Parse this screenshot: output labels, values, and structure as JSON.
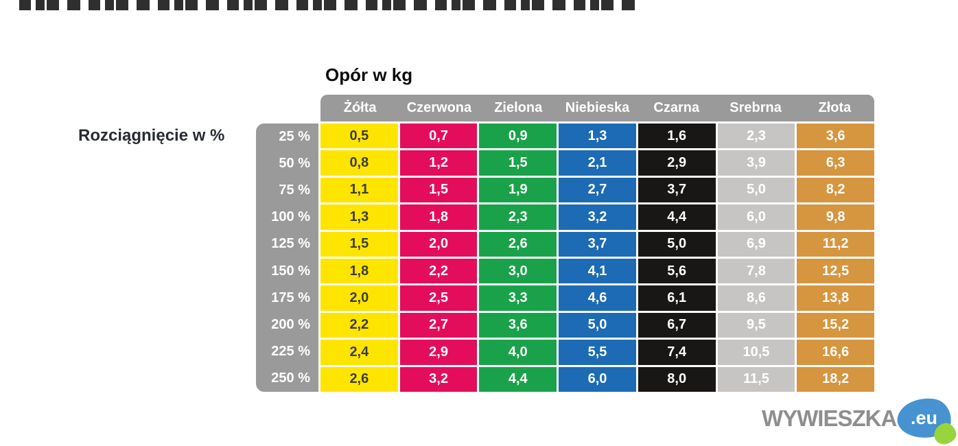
{
  "title": "Opór w kg",
  "row_axis_label": "Rozciągnięcie w %",
  "logo": {
    "text": "WYWIESZKA",
    "tld": ".eu",
    "text_color": "#8e8e8e",
    "blue_blob_color": "#4792d0",
    "green_blob_color": "#98d43c"
  },
  "colors": {
    "header_gray": "#9b9a9a",
    "row_label_gray": "#9b9a9a",
    "background": "#ffffff"
  },
  "chart_data": {
    "type": "table",
    "title": "Opór w kg",
    "row_axis_label": "Rozciągnięcie w %",
    "columns": [
      {
        "key": "zolta",
        "label": "Żółta",
        "bg": "#fde500",
        "fg": "#3b3b3a"
      },
      {
        "key": "czerwona",
        "label": "Czerwona",
        "bg": "#e40d5c",
        "fg": "#ffffff"
      },
      {
        "key": "zielona",
        "label": "Zielona",
        "bg": "#1aa24b",
        "fg": "#ffffff"
      },
      {
        "key": "niebieska",
        "label": "Niebieska",
        "bg": "#1c6bb4",
        "fg": "#ffffff"
      },
      {
        "key": "czarna",
        "label": "Czarna",
        "bg": "#191715",
        "fg": "#ffffff"
      },
      {
        "key": "srebrna",
        "label": "Srebrna",
        "bg": "#c6c5c4",
        "fg": "#ffffff"
      },
      {
        "key": "zlota",
        "label": "Złota",
        "bg": "#d6953f",
        "fg": "#ffffff"
      }
    ],
    "rows": [
      {
        "label": "25 %",
        "values": [
          "0,5",
          "0,7",
          "0,9",
          "1,3",
          "1,6",
          "2,3",
          "3,6"
        ]
      },
      {
        "label": "50 %",
        "values": [
          "0,8",
          "1,2",
          "1,5",
          "2,1",
          "2,9",
          "3,9",
          "6,3"
        ]
      },
      {
        "label": "75 %",
        "values": [
          "1,1",
          "1,5",
          "1,9",
          "2,7",
          "3,7",
          "5,0",
          "8,2"
        ]
      },
      {
        "label": "100 %",
        "values": [
          "1,3",
          "1,8",
          "2,3",
          "3,2",
          "4,4",
          "6,0",
          "9,8"
        ]
      },
      {
        "label": "125 %",
        "values": [
          "1,5",
          "2,0",
          "2,6",
          "3,7",
          "5,0",
          "6,9",
          "11,2"
        ]
      },
      {
        "label": "150 %",
        "values": [
          "1,8",
          "2,2",
          "3,0",
          "4,1",
          "5,6",
          "7,8",
          "12,5"
        ]
      },
      {
        "label": "175 %",
        "values": [
          "2,0",
          "2,5",
          "3,3",
          "4,6",
          "6,1",
          "8,6",
          "13,8"
        ]
      },
      {
        "label": "200 %",
        "values": [
          "2,2",
          "2,7",
          "3,6",
          "5,0",
          "6,7",
          "9,5",
          "15,2"
        ]
      },
      {
        "label": "225 %",
        "values": [
          "2,4",
          "2,9",
          "4,0",
          "5,5",
          "7,4",
          "10,5",
          "16,6"
        ]
      },
      {
        "label": "250 %",
        "values": [
          "2,6",
          "3,2",
          "4,4",
          "6,0",
          "8,0",
          "11,5",
          "18,2"
        ]
      }
    ]
  }
}
